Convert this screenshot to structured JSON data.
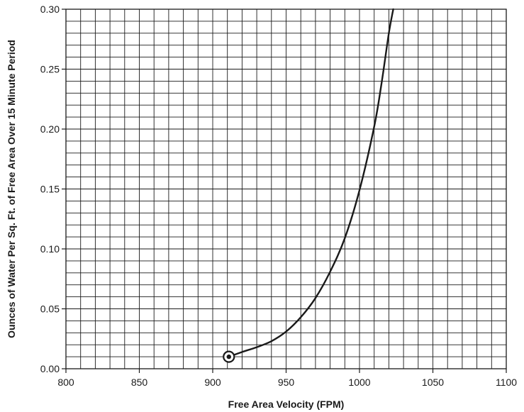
{
  "chart_data": {
    "type": "line",
    "title": "",
    "xlabel": "Free Area Velocity (FPM)",
    "ylabel": "Ounces of Water Per Sq. Ft. of Free Area Over 15 Minute Period",
    "xlim": [
      800,
      1100
    ],
    "ylim": [
      0,
      0.3
    ],
    "x_ticks": [
      800,
      850,
      900,
      950,
      1000,
      1050,
      1100
    ],
    "x_tick_labels": [
      "800",
      "850",
      "900",
      "950",
      "1000",
      "1050",
      "1100"
    ],
    "y_ticks": [
      0,
      0.05,
      0.1,
      0.15,
      0.2,
      0.25,
      0.3
    ],
    "y_tick_labels": [
      "0.00",
      "0.05",
      "0.10",
      "0.15",
      "0.20",
      "0.25",
      "0.30"
    ],
    "grid": true,
    "minor_grid_x_step": 10,
    "minor_grid_y_step": 0.01,
    "legend": "none",
    "colors": {
      "line": "#1a1a1a",
      "grid": "#1a1a1a",
      "background": "#ffffff"
    },
    "series": [
      {
        "x": [
          911,
          920,
          930,
          940,
          950,
          960,
          970,
          980,
          990,
          1000,
          1010,
          1015,
          1020,
          1023
        ],
        "y": [
          0.01,
          0.014,
          0.018,
          0.023,
          0.031,
          0.043,
          0.059,
          0.081,
          0.109,
          0.149,
          0.202,
          0.238,
          0.28,
          0.3
        ]
      }
    ],
    "start_marker": {
      "x": 911,
      "y": 0.01,
      "shape": "circled-dot"
    }
  }
}
